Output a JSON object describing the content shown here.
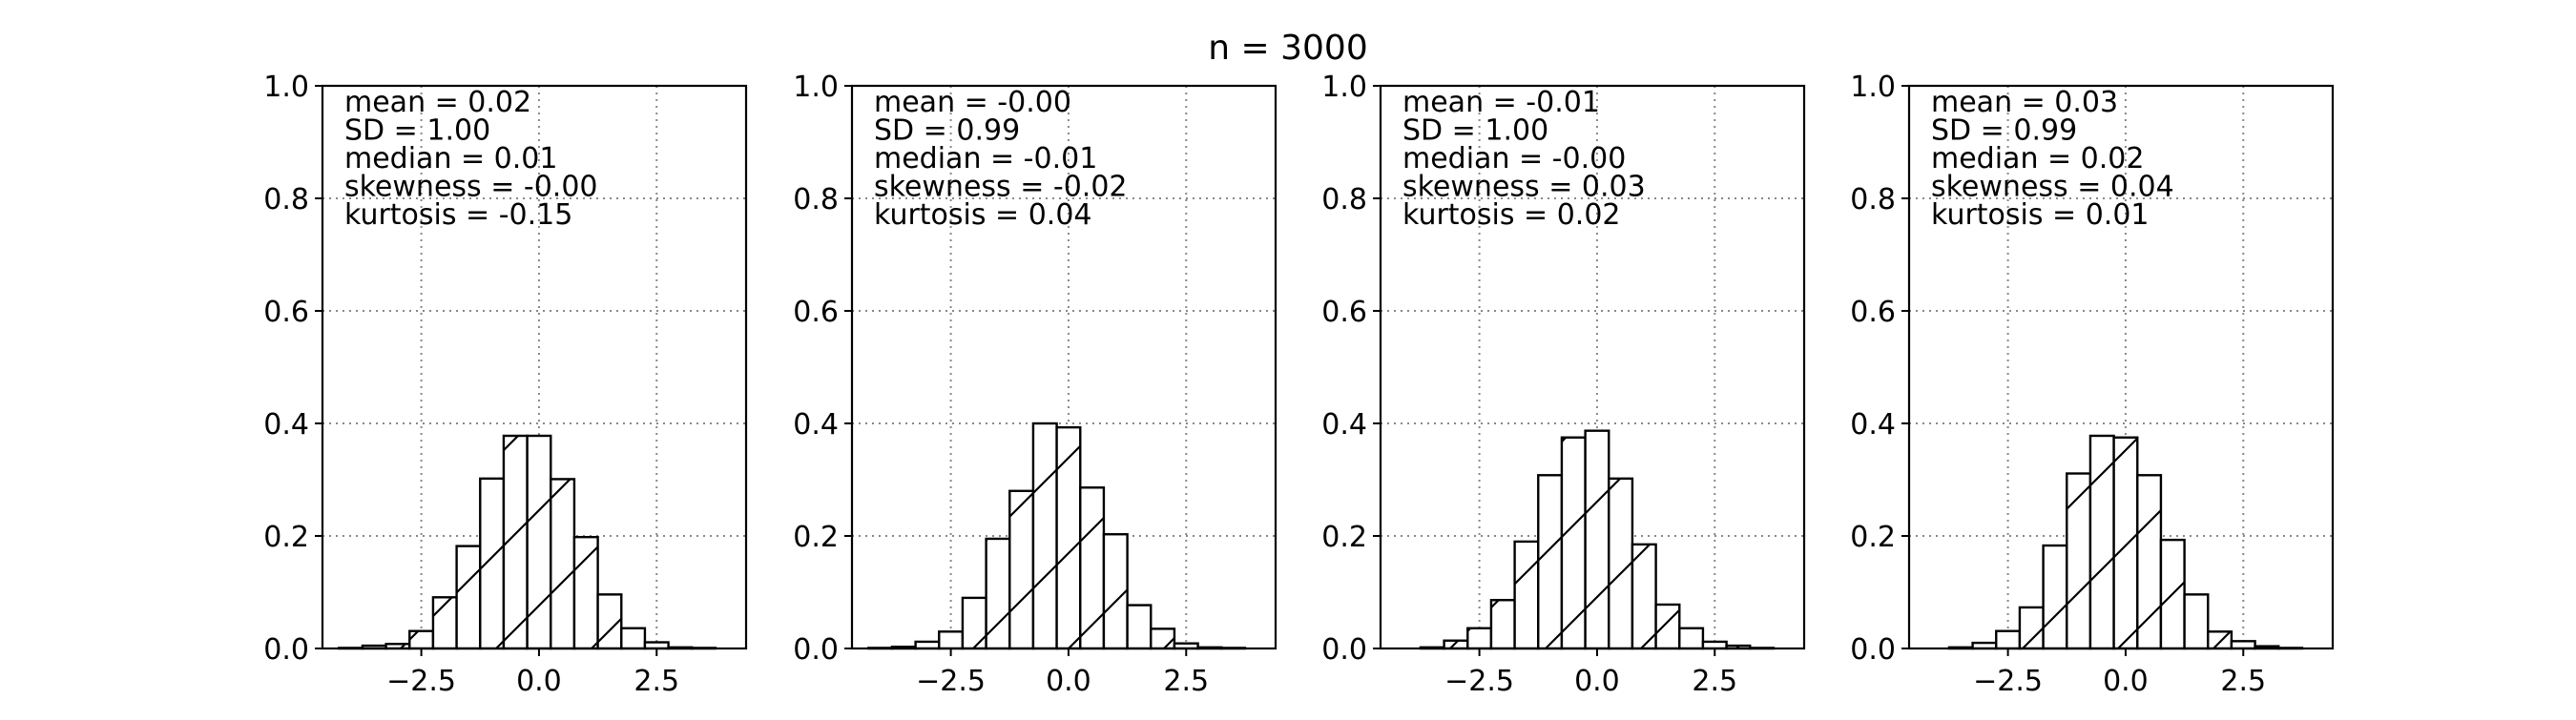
{
  "figure": {
    "suptitle": "n = 3000"
  },
  "chart_data": [
    {
      "type": "bar",
      "subtype": "histogram",
      "bin_edges": [
        -4.25,
        -3.75,
        -3.25,
        -2.75,
        -2.25,
        -1.75,
        -1.25,
        -0.75,
        -0.25,
        0.25,
        0.75,
        1.25,
        1.75,
        2.25,
        2.75,
        3.25,
        3.75,
        4.25
      ],
      "values": [
        0.001,
        0.005,
        0.008,
        0.031,
        0.091,
        0.182,
        0.302,
        0.378,
        0.378,
        0.301,
        0.198,
        0.096,
        0.036,
        0.011,
        0.002,
        0.001,
        0.0
      ],
      "stats": [
        "mean = 0.02",
        "SD = 1.00",
        "median = 0.01",
        "skewness = -0.00",
        "kurtosis = -0.15"
      ],
      "xticks": [
        -2.5,
        0.0,
        2.5
      ],
      "xtick_labels": [
        "−2.5",
        "0.0",
        "2.5"
      ],
      "yticks": [
        0.0,
        0.2,
        0.4,
        0.6,
        0.8,
        1.0
      ],
      "ytick_labels": [
        "0.0",
        "0.2",
        "0.4",
        "0.6",
        "0.8",
        "1.0"
      ],
      "xlim": [
        -4.6,
        4.4
      ],
      "ylim": [
        0,
        1
      ],
      "grid": true,
      "hatch": "/",
      "fill": "#ffffff",
      "edge": "#000000"
    },
    {
      "type": "bar",
      "subtype": "histogram",
      "bin_edges": [
        -4.25,
        -3.75,
        -3.25,
        -2.75,
        -2.25,
        -1.75,
        -1.25,
        -0.75,
        -0.25,
        0.25,
        0.75,
        1.25,
        1.75,
        2.25,
        2.75,
        3.25,
        3.75,
        4.25
      ],
      "values": [
        0.001,
        0.003,
        0.012,
        0.03,
        0.09,
        0.195,
        0.28,
        0.4,
        0.393,
        0.286,
        0.203,
        0.077,
        0.035,
        0.009,
        0.002,
        0.001,
        0.0
      ],
      "stats": [
        "mean = -0.00",
        "SD = 0.99",
        "median = -0.01",
        "skewness = -0.02",
        "kurtosis = 0.04"
      ],
      "xticks": [
        -2.5,
        0.0,
        2.5
      ],
      "xtick_labels": [
        "−2.5",
        "0.0",
        "2.5"
      ],
      "yticks": [
        0.0,
        0.2,
        0.4,
        0.6,
        0.8,
        1.0
      ],
      "ytick_labels": [
        "0.0",
        "0.2",
        "0.4",
        "0.6",
        "0.8",
        "1.0"
      ],
      "xlim": [
        -4.6,
        4.4
      ],
      "ylim": [
        0,
        1
      ],
      "grid": true,
      "hatch": "/",
      "fill": "#ffffff",
      "edge": "#000000"
    },
    {
      "type": "bar",
      "subtype": "histogram",
      "bin_edges": [
        -4.25,
        -3.75,
        -3.25,
        -2.75,
        -2.25,
        -1.75,
        -1.25,
        -0.75,
        -0.25,
        0.25,
        0.75,
        1.25,
        1.75,
        2.25,
        2.75,
        3.25,
        3.75,
        4.25
      ],
      "values": [
        0.0,
        0.002,
        0.014,
        0.036,
        0.086,
        0.19,
        0.308,
        0.375,
        0.387,
        0.302,
        0.185,
        0.078,
        0.036,
        0.012,
        0.005,
        0.001,
        0.0
      ],
      "stats": [
        "mean = -0.01",
        "SD = 1.00",
        "median = -0.00",
        "skewness = 0.03",
        "kurtosis = 0.02"
      ],
      "xticks": [
        -2.5,
        0.0,
        2.5
      ],
      "xtick_labels": [
        "−2.5",
        "0.0",
        "2.5"
      ],
      "yticks": [
        0.0,
        0.2,
        0.4,
        0.6,
        0.8,
        1.0
      ],
      "ytick_labels": [
        "0.0",
        "0.2",
        "0.4",
        "0.6",
        "0.8",
        "1.0"
      ],
      "xlim": [
        -4.6,
        4.4
      ],
      "ylim": [
        0,
        1
      ],
      "grid": true,
      "hatch": "/",
      "fill": "#ffffff",
      "edge": "#000000"
    },
    {
      "type": "bar",
      "subtype": "histogram",
      "bin_edges": [
        -4.25,
        -3.75,
        -3.25,
        -2.75,
        -2.25,
        -1.75,
        -1.25,
        -0.75,
        -0.25,
        0.25,
        0.75,
        1.25,
        1.75,
        2.25,
        2.75,
        3.25,
        3.75,
        4.25
      ],
      "values": [
        0.0,
        0.002,
        0.01,
        0.031,
        0.073,
        0.183,
        0.311,
        0.378,
        0.375,
        0.308,
        0.193,
        0.096,
        0.03,
        0.013,
        0.004,
        0.001,
        0.0
      ],
      "stats": [
        "mean = 0.03",
        "SD = 0.99",
        "median = 0.02",
        "skewness = 0.04",
        "kurtosis = 0.01"
      ],
      "xticks": [
        -2.5,
        0.0,
        2.5
      ],
      "xtick_labels": [
        "−2.5",
        "0.0",
        "2.5"
      ],
      "yticks": [
        0.0,
        0.2,
        0.4,
        0.6,
        0.8,
        1.0
      ],
      "ytick_labels": [
        "0.0",
        "0.2",
        "0.4",
        "0.6",
        "0.8",
        "1.0"
      ],
      "xlim": [
        -4.6,
        4.4
      ],
      "ylim": [
        0,
        1
      ],
      "grid": true,
      "hatch": "/",
      "fill": "#ffffff",
      "edge": "#000000"
    }
  ]
}
